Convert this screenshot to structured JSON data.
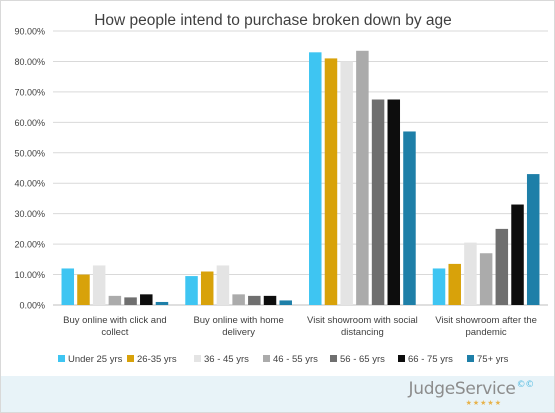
{
  "chart_data": {
    "type": "bar",
    "title": "How people intend to purchase broken down by age",
    "xlabel": "",
    "ylabel": "",
    "ylim": [
      0,
      90
    ],
    "y_ticks": [
      "0.00%",
      "10.00%",
      "20.00%",
      "30.00%",
      "40.00%",
      "50.00%",
      "60.00%",
      "70.00%",
      "80.00%",
      "90.00%"
    ],
    "categories": [
      [
        "Buy online with click and",
        "collect"
      ],
      [
        "Buy online with home",
        "delivery"
      ],
      [
        "Visit showroom with social",
        "distancing"
      ],
      [
        "Visit showroom after the",
        "pandemic"
      ]
    ],
    "series": [
      {
        "name": "Under 25 yrs",
        "color": "#3ec5f2",
        "values": [
          12.0,
          9.5,
          83.0,
          12.0
        ]
      },
      {
        "name": "26-35 yrs",
        "color": "#d8a20a",
        "values": [
          10.0,
          11.0,
          81.0,
          13.5
        ]
      },
      {
        "name": "36 - 45 yrs",
        "color": "#e4e4e4",
        "values": [
          13.0,
          13.0,
          80.0,
          20.5
        ]
      },
      {
        "name": "46 - 55 yrs",
        "color": "#ababab",
        "values": [
          3.0,
          3.5,
          83.5,
          17.0
        ]
      },
      {
        "name": "56 - 65 yrs",
        "color": "#6f6f6f",
        "values": [
          2.5,
          3.0,
          67.5,
          25.0
        ]
      },
      {
        "name": "66 - 75 yrs",
        "color": "#0d0d0d",
        "values": [
          3.5,
          3.0,
          67.5,
          33.0
        ]
      },
      {
        "name": "75+ yrs",
        "color": "#1e7fa8",
        "values": [
          1.0,
          1.5,
          57.0,
          43.0
        ]
      }
    ],
    "grid": true,
    "legend": "bottom"
  },
  "brand": {
    "name": "JudgeService",
    "mark": "©©",
    "stars": "★★★★★"
  }
}
